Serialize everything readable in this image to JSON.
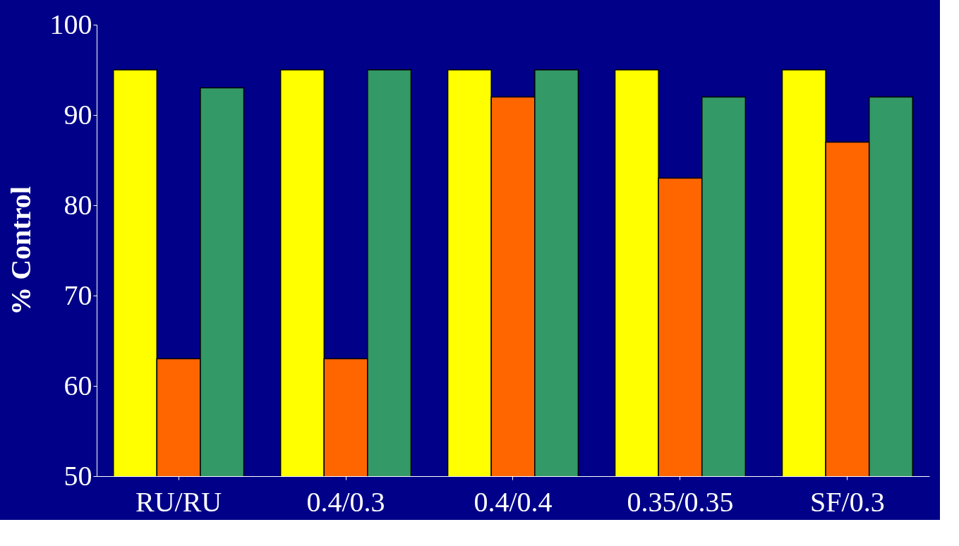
{
  "chart_data": {
    "type": "bar",
    "ylabel": "% Control",
    "categories": [
      "RU/RU",
      "0.4/0.3",
      "0.4/0.4",
      "0.35/0.35",
      "SF/0.3"
    ],
    "series": [
      {
        "color": "#ffff00",
        "values": [
          95,
          95,
          95,
          95,
          95
        ]
      },
      {
        "color": "#ff6600",
        "values": [
          63,
          63,
          92,
          83,
          87
        ]
      },
      {
        "color": "#339966",
        "values": [
          93,
          95,
          95,
          92,
          92
        ]
      }
    ],
    "ylim": [
      50,
      100
    ],
    "yticks": [
      50,
      60,
      70,
      80,
      90,
      100
    ],
    "grid": false,
    "legend": false
  }
}
